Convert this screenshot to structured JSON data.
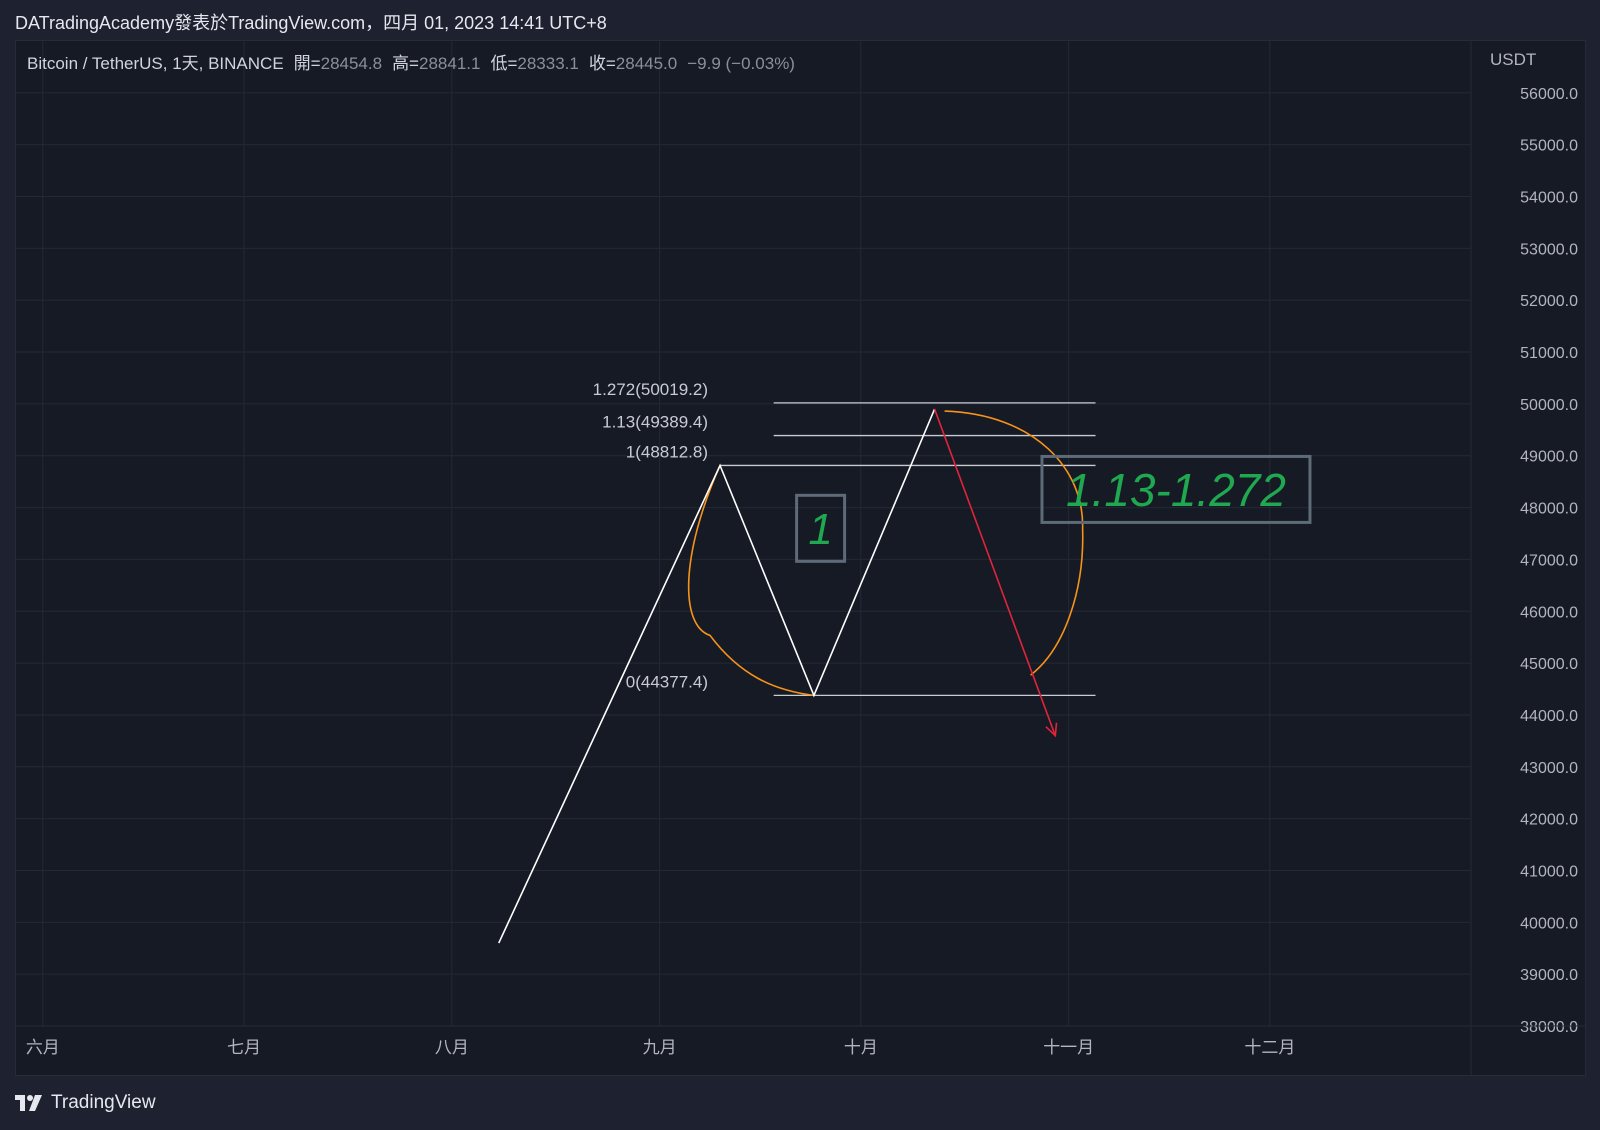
{
  "header": {
    "title": "DATradingAcademy發表於TradingView.com，四月 01, 2023 14:41 UTC+8"
  },
  "legend": {
    "symbol": "Bitcoin / TetherUS, 1天, BINANCE",
    "ohlc": [
      {
        "label": "開=",
        "value": "28454.8"
      },
      {
        "label": "高=",
        "value": "28841.1"
      },
      {
        "label": "低=",
        "value": "28333.1"
      },
      {
        "label": "收=",
        "value": "28445.0"
      }
    ],
    "change": "−9.9 (−0.03%)"
  },
  "footer": {
    "brand": "TradingView",
    "icon": "tradingview-logo-icon"
  },
  "colors": {
    "background": "#161a25",
    "grid": "#242936",
    "text": "#b2b5be",
    "wave": "#ffffff",
    "fib": "#c8cbd2",
    "ellipse": "#f7931a",
    "arrow": "#e0243b",
    "annotation": "#1fa84f",
    "annotation_border": "#5d6b78"
  },
  "chart_data": {
    "type": "line",
    "y_axis": {
      "unit": "USDT",
      "min": 38000,
      "max": 57000,
      "tick_labels": [
        "56000.0",
        "55000.0",
        "54000.0",
        "53000.0",
        "52000.0",
        "51000.0",
        "50000.0",
        "49000.0",
        "48000.0",
        "47000.0",
        "46000.0",
        "45000.0",
        "44000.0",
        "43000.0",
        "42000.0",
        "41000.0",
        "40000.0",
        "39000.0",
        "38000.0"
      ]
    },
    "x_axis": {
      "labels": [
        "六月",
        "七月",
        "八月",
        "九月",
        "十月",
        "十一月",
        "十二月"
      ],
      "label_dates": [
        "2023-06-01",
        "2023-07-01",
        "2023-08-01",
        "2023-09-01",
        "2023-10-01",
        "2023-11-01",
        "2023-12-01"
      ],
      "start": "2023-05-28",
      "end": "2023-12-31"
    },
    "grid": true,
    "wave_path": [
      {
        "date": "2023-08-08",
        "price": 39600
      },
      {
        "date": "2023-09-10",
        "price": 48812.8
      },
      {
        "date": "2023-09-24",
        "price": 44377.4
      },
      {
        "date": "2023-10-12",
        "price": 49900
      }
    ],
    "projection_arrow": [
      {
        "date": "2023-10-12",
        "price": 49900
      },
      {
        "date": "2023-10-30",
        "price": 43600
      }
    ],
    "fib_levels": [
      {
        "label": "1.272(50019.2)",
        "price": 50019.2,
        "start": "2023-09-18",
        "end": "2023-11-05"
      },
      {
        "label": "1.13(49389.4)",
        "price": 49389.4,
        "start": "2023-09-18",
        "end": "2023-11-05"
      },
      {
        "label": "1(48812.8)",
        "price": 48812.8,
        "start": "2023-09-10",
        "end": "2023-11-05"
      },
      {
        "label": "0(44377.4)",
        "price": 44377.4,
        "start": "2023-09-18",
        "end": "2023-11-05"
      }
    ],
    "annotations": [
      {
        "text": "1",
        "date": "2023-09-25",
        "price": 47600,
        "size": "small"
      },
      {
        "text": "1.13-1.272",
        "date": "2023-11-17",
        "price": 48350,
        "size": "large"
      }
    ],
    "highlight_ellipses": [
      {
        "name": "wave-1-ellipse"
      },
      {
        "name": "target-zone-ellipse"
      }
    ]
  }
}
